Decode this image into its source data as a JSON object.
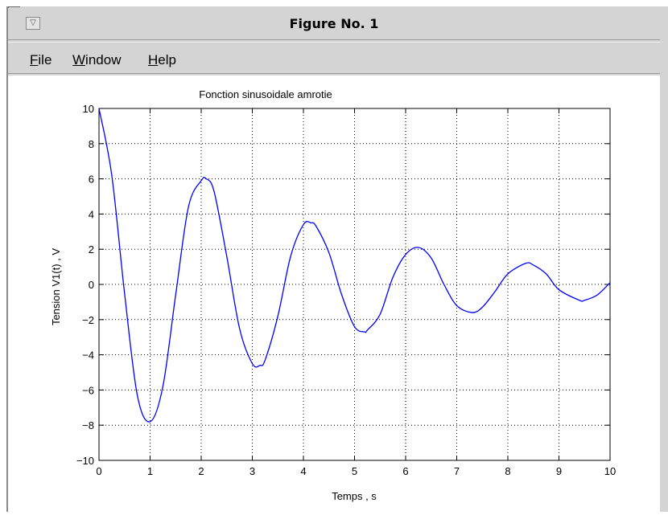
{
  "window": {
    "title": "Figure No. 1",
    "menu_button_glyph": "▽"
  },
  "menu": {
    "items": [
      {
        "label": "File",
        "underline": "F",
        "rest": "ile"
      },
      {
        "label": "Window",
        "underline": "W",
        "rest": "indow"
      },
      {
        "label": "Help",
        "underline": "H",
        "rest": "elp"
      }
    ]
  },
  "chart_data": {
    "type": "line",
    "title": "Fonction sinusoidale amrotie",
    "xlabel": "Temps , s",
    "ylabel": "Tension V1(t) , V",
    "xlim": [
      0,
      10
    ],
    "ylim": [
      -10,
      10
    ],
    "x_ticks": [
      0,
      1,
      2,
      3,
      4,
      5,
      6,
      7,
      8,
      9,
      10
    ],
    "y_ticks": [
      10,
      8,
      6,
      4,
      2,
      0,
      -2,
      -4,
      -6,
      -8,
      -10
    ],
    "grid": true,
    "line_color": "#0000ff",
    "series": [
      {
        "x": [
          0,
          0.25,
          0.5,
          0.75,
          1.0,
          1.25,
          1.5,
          1.75,
          2.0,
          2.1,
          2.25,
          2.5,
          2.75,
          3.0,
          3.15,
          3.25,
          3.5,
          3.75,
          4.0,
          4.15,
          4.25,
          4.5,
          4.75,
          5.0,
          5.2,
          5.25,
          5.5,
          5.75,
          6.0,
          6.25,
          6.5,
          6.75,
          7.0,
          7.3,
          7.5,
          7.75,
          8.0,
          8.35,
          8.5,
          8.75,
          9.0,
          9.4,
          9.5,
          9.75,
          10.0
        ],
        "y": [
          10,
          6.2,
          -0.5,
          -6.3,
          -7.8,
          -5.8,
          -0.6,
          4.4,
          5.9,
          6.0,
          5.3,
          1.6,
          -2.5,
          -4.5,
          -4.6,
          -4.3,
          -1.8,
          1.6,
          3.4,
          3.5,
          3.3,
          1.8,
          -0.6,
          -2.4,
          -2.7,
          -2.6,
          -1.7,
          0.4,
          1.7,
          2.1,
          1.5,
          0.0,
          -1.2,
          -1.6,
          -1.3,
          -0.4,
          0.6,
          1.2,
          1.1,
          0.6,
          -0.3,
          -0.9,
          -0.9,
          -0.6,
          0.1
        ]
      }
    ]
  }
}
